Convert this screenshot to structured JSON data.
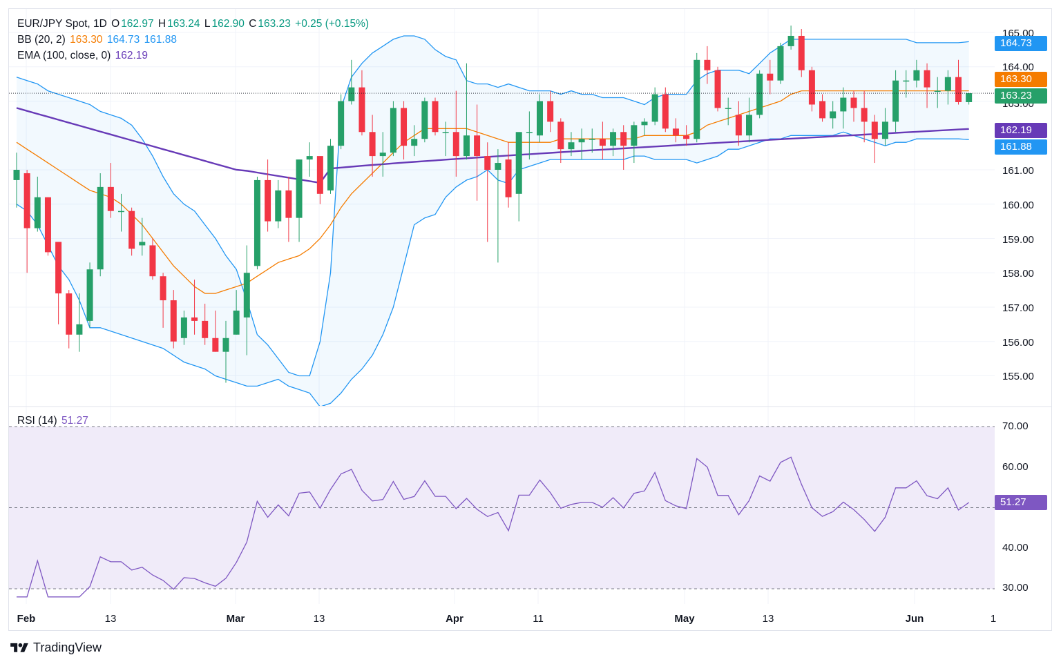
{
  "legend": {
    "symbol": "EUR/JPY Spot, 1D",
    "o_label": "O",
    "o_value": "162.97",
    "h_label": "H",
    "h_value": "163.24",
    "l_label": "L",
    "l_value": "162.90",
    "c_label": "C",
    "c_value": "163.23",
    "change": "+0.25 (+0.15%)",
    "bb_label": "BB (20, 2)",
    "bb_mid": "163.30",
    "bb_upper": "164.73",
    "bb_lower": "161.88",
    "ema_label": "EMA (100, close, 0)",
    "ema_value": "162.19",
    "rsi_label": "RSI (14)",
    "rsi_value": "51.27"
  },
  "price_tags": {
    "upper": "164.73",
    "mid": "163.30",
    "close": "163.23",
    "ema": "162.19",
    "lower": "161.88",
    "rsi": "51.27"
  },
  "colors": {
    "up": "#26a069",
    "down": "#f23645",
    "bb_basis": "#f57c00",
    "bb_band": "#2196f3",
    "ema": "#673ab7",
    "rsi": "#7e57c2",
    "rsi_fill": "#f0ebf9"
  },
  "x_labels": [
    {
      "text": "Feb",
      "bold": true
    },
    {
      "text": "13",
      "bold": false
    },
    {
      "text": "Mar",
      "bold": true
    },
    {
      "text": "13",
      "bold": false
    },
    {
      "text": "Apr",
      "bold": true
    },
    {
      "text": "11",
      "bold": false
    },
    {
      "text": "May",
      "bold": true
    },
    {
      "text": "13",
      "bold": false
    },
    {
      "text": "Jun",
      "bold": true
    },
    {
      "text": "1",
      "bold": false
    }
  ],
  "brand": "TradingView",
  "chart_data": {
    "type": "candlestick",
    "title": "EUR/JPY Spot, 1D",
    "price_axis": {
      "ticks": [
        "165.00",
        "164.00",
        "163.00",
        "161.00",
        "160.00",
        "159.00",
        "158.00",
        "157.00",
        "156.00",
        "155.00"
      ],
      "ylim": [
        154.2,
        165.8
      ]
    },
    "rsi_axis": {
      "ticks": [
        "70.00",
        "60.00",
        "40.00",
        "30.00"
      ],
      "ylim": [
        27,
        75
      ],
      "bands": [
        30,
        70
      ],
      "mid": 50
    },
    "candles": [
      {
        "o": 160.7,
        "h": 161.5,
        "l": 159.9,
        "c": 161.0
      },
      {
        "o": 160.9,
        "h": 161.0,
        "l": 158.0,
        "c": 159.3
      },
      {
        "o": 159.3,
        "h": 160.8,
        "l": 159.2,
        "c": 160.2
      },
      {
        "o": 160.2,
        "h": 160.2,
        "l": 158.5,
        "c": 158.6
      },
      {
        "o": 158.9,
        "h": 158.9,
        "l": 156.5,
        "c": 157.4
      },
      {
        "o": 157.4,
        "h": 157.5,
        "l": 155.8,
        "c": 156.2
      },
      {
        "o": 156.2,
        "h": 157.4,
        "l": 155.7,
        "c": 156.5
      },
      {
        "o": 156.6,
        "h": 158.3,
        "l": 156.4,
        "c": 158.1
      },
      {
        "o": 158.1,
        "h": 160.9,
        "l": 157.9,
        "c": 160.5
      },
      {
        "o": 160.5,
        "h": 161.2,
        "l": 159.6,
        "c": 159.8
      },
      {
        "o": 159.8,
        "h": 160.3,
        "l": 159.2,
        "c": 159.8
      },
      {
        "o": 159.8,
        "h": 159.9,
        "l": 158.5,
        "c": 158.7
      },
      {
        "o": 158.8,
        "h": 159.6,
        "l": 158.5,
        "c": 158.9
      },
      {
        "o": 158.8,
        "h": 159.0,
        "l": 157.8,
        "c": 157.9
      },
      {
        "o": 157.9,
        "h": 158.0,
        "l": 156.4,
        "c": 157.2
      },
      {
        "o": 157.2,
        "h": 157.5,
        "l": 155.8,
        "c": 156.0
      },
      {
        "o": 156.1,
        "h": 156.9,
        "l": 155.9,
        "c": 156.7
      },
      {
        "o": 156.7,
        "h": 157.8,
        "l": 156.2,
        "c": 156.6
      },
      {
        "o": 156.6,
        "h": 157.1,
        "l": 155.9,
        "c": 156.1
      },
      {
        "o": 156.1,
        "h": 156.9,
        "l": 155.7,
        "c": 155.7
      },
      {
        "o": 155.7,
        "h": 156.6,
        "l": 154.8,
        "c": 156.1
      },
      {
        "o": 156.2,
        "h": 157.5,
        "l": 156.2,
        "c": 156.9
      },
      {
        "o": 156.7,
        "h": 158.8,
        "l": 155.6,
        "c": 158.0
      },
      {
        "o": 158.2,
        "h": 160.8,
        "l": 158.1,
        "c": 160.7
      },
      {
        "o": 160.7,
        "h": 161.3,
        "l": 159.2,
        "c": 159.5
      },
      {
        "o": 159.5,
        "h": 160.7,
        "l": 159.3,
        "c": 160.4
      },
      {
        "o": 160.4,
        "h": 160.8,
        "l": 158.9,
        "c": 159.6
      },
      {
        "o": 159.6,
        "h": 161.3,
        "l": 158.9,
        "c": 161.3
      },
      {
        "o": 161.3,
        "h": 161.8,
        "l": 160.8,
        "c": 161.4
      },
      {
        "o": 161.4,
        "h": 161.3,
        "l": 160.0,
        "c": 160.3
      },
      {
        "o": 160.4,
        "h": 161.9,
        "l": 160.3,
        "c": 161.7
      },
      {
        "o": 161.7,
        "h": 163.2,
        "l": 161.6,
        "c": 163.0
      },
      {
        "o": 163.0,
        "h": 164.2,
        "l": 162.9,
        "c": 163.4
      },
      {
        "o": 163.4,
        "h": 163.9,
        "l": 162.0,
        "c": 162.1
      },
      {
        "o": 162.1,
        "h": 162.6,
        "l": 160.8,
        "c": 161.4
      },
      {
        "o": 161.4,
        "h": 162.1,
        "l": 160.8,
        "c": 161.5
      },
      {
        "o": 161.5,
        "h": 163.0,
        "l": 161.4,
        "c": 162.8
      },
      {
        "o": 162.8,
        "h": 163.0,
        "l": 161.3,
        "c": 161.7
      },
      {
        "o": 161.7,
        "h": 162.3,
        "l": 161.4,
        "c": 161.9
      },
      {
        "o": 161.9,
        "h": 163.1,
        "l": 161.8,
        "c": 163.0
      },
      {
        "o": 163.0,
        "h": 163.1,
        "l": 162.0,
        "c": 162.1
      },
      {
        "o": 162.1,
        "h": 162.4,
        "l": 161.4,
        "c": 162.1
      },
      {
        "o": 162.1,
        "h": 163.3,
        "l": 160.8,
        "c": 161.4
      },
      {
        "o": 161.4,
        "h": 164.1,
        "l": 161.3,
        "c": 162.0
      },
      {
        "o": 162.0,
        "h": 162.9,
        "l": 160.1,
        "c": 161.4
      },
      {
        "o": 161.4,
        "h": 161.8,
        "l": 158.9,
        "c": 161.0
      },
      {
        "o": 161.0,
        "h": 161.6,
        "l": 158.3,
        "c": 161.2
      },
      {
        "o": 161.3,
        "h": 161.8,
        "l": 159.9,
        "c": 160.2
      },
      {
        "o": 160.3,
        "h": 162.0,
        "l": 159.5,
        "c": 162.1
      },
      {
        "o": 162.1,
        "h": 162.7,
        "l": 161.3,
        "c": 162.1
      },
      {
        "o": 162.0,
        "h": 163.2,
        "l": 161.8,
        "c": 163.0
      },
      {
        "o": 163.0,
        "h": 163.3,
        "l": 162.1,
        "c": 162.4
      },
      {
        "o": 162.4,
        "h": 162.5,
        "l": 161.2,
        "c": 161.6
      },
      {
        "o": 161.6,
        "h": 162.1,
        "l": 161.4,
        "c": 161.8
      },
      {
        "o": 161.8,
        "h": 162.2,
        "l": 161.3,
        "c": 161.9
      },
      {
        "o": 161.9,
        "h": 162.2,
        "l": 161.5,
        "c": 161.9
      },
      {
        "o": 161.9,
        "h": 162.4,
        "l": 161.3,
        "c": 161.7
      },
      {
        "o": 161.7,
        "h": 162.2,
        "l": 161.4,
        "c": 162.1
      },
      {
        "o": 162.1,
        "h": 162.3,
        "l": 161.0,
        "c": 161.7
      },
      {
        "o": 161.7,
        "h": 162.4,
        "l": 161.2,
        "c": 162.3
      },
      {
        "o": 162.3,
        "h": 162.5,
        "l": 162.0,
        "c": 162.4
      },
      {
        "o": 162.4,
        "h": 163.4,
        "l": 162.3,
        "c": 163.2
      },
      {
        "o": 163.2,
        "h": 163.4,
        "l": 162.1,
        "c": 162.2
      },
      {
        "o": 162.2,
        "h": 162.5,
        "l": 161.8,
        "c": 162.0
      },
      {
        "o": 162.0,
        "h": 162.3,
        "l": 161.7,
        "c": 161.9
      },
      {
        "o": 161.9,
        "h": 164.4,
        "l": 161.8,
        "c": 164.2
      },
      {
        "o": 164.2,
        "h": 164.6,
        "l": 163.5,
        "c": 163.9
      },
      {
        "o": 163.9,
        "h": 164.0,
        "l": 162.7,
        "c": 162.8
      },
      {
        "o": 162.8,
        "h": 163.1,
        "l": 162.3,
        "c": 162.8
      },
      {
        "o": 162.6,
        "h": 163.0,
        "l": 161.7,
        "c": 162.0
      },
      {
        "o": 162.0,
        "h": 163.1,
        "l": 161.8,
        "c": 162.6
      },
      {
        "o": 162.6,
        "h": 163.9,
        "l": 162.5,
        "c": 163.8
      },
      {
        "o": 163.8,
        "h": 164.2,
        "l": 163.2,
        "c": 163.6
      },
      {
        "o": 163.6,
        "h": 164.7,
        "l": 163.5,
        "c": 164.6
      },
      {
        "o": 164.6,
        "h": 165.2,
        "l": 164.5,
        "c": 164.9
      },
      {
        "o": 164.9,
        "h": 165.1,
        "l": 163.7,
        "c": 163.9
      },
      {
        "o": 163.9,
        "h": 164.0,
        "l": 162.7,
        "c": 162.9
      },
      {
        "o": 163.0,
        "h": 163.2,
        "l": 162.4,
        "c": 162.5
      },
      {
        "o": 162.5,
        "h": 163.0,
        "l": 162.2,
        "c": 162.7
      },
      {
        "o": 162.7,
        "h": 163.4,
        "l": 162.2,
        "c": 163.1
      },
      {
        "o": 163.1,
        "h": 163.3,
        "l": 162.4,
        "c": 162.8
      },
      {
        "o": 162.8,
        "h": 163.3,
        "l": 161.8,
        "c": 162.4
      },
      {
        "o": 162.4,
        "h": 162.6,
        "l": 161.2,
        "c": 161.9
      },
      {
        "o": 161.9,
        "h": 162.8,
        "l": 161.7,
        "c": 162.4
      },
      {
        "o": 162.4,
        "h": 163.9,
        "l": 162.1,
        "c": 163.6
      },
      {
        "o": 163.6,
        "h": 163.9,
        "l": 163.1,
        "c": 163.6
      },
      {
        "o": 163.6,
        "h": 164.2,
        "l": 163.4,
        "c": 163.9
      },
      {
        "o": 163.9,
        "h": 164.1,
        "l": 162.8,
        "c": 163.4
      },
      {
        "o": 163.3,
        "h": 163.7,
        "l": 162.8,
        "c": 163.3
      },
      {
        "o": 163.3,
        "h": 163.9,
        "l": 162.9,
        "c": 163.7
      },
      {
        "o": 163.7,
        "h": 164.2,
        "l": 162.9,
        "c": 162.97
      },
      {
        "o": 162.97,
        "h": 163.24,
        "l": 162.9,
        "c": 163.23
      }
    ],
    "bb_upper": [
      163.7,
      163.6,
      163.5,
      163.3,
      163.2,
      163.1,
      163.0,
      162.9,
      162.7,
      162.6,
      162.5,
      162.3,
      161.9,
      161.4,
      160.8,
      160.3,
      160.0,
      159.8,
      159.4,
      159.0,
      158.5,
      158.1,
      157.2,
      156.2,
      155.9,
      155.5,
      155.1,
      155.0,
      155.0,
      156.0,
      158.0,
      162.8,
      163.7,
      164.1,
      164.4,
      164.6,
      164.8,
      164.9,
      164.9,
      164.8,
      164.5,
      164.3,
      164.2,
      163.6,
      163.5,
      163.5,
      163.4,
      163.5,
      163.4,
      163.3,
      163.3,
      163.3,
      163.2,
      163.3,
      163.2,
      163.2,
      163.1,
      163.1,
      163.1,
      163.0,
      162.9,
      163.1,
      163.2,
      163.2,
      163.2,
      163.6,
      163.8,
      163.9,
      163.9,
      163.9,
      163.8,
      164.1,
      164.4,
      164.6,
      164.8,
      164.8,
      164.8,
      164.8,
      164.8,
      164.8,
      164.8,
      164.8,
      164.8,
      164.8,
      164.8,
      164.8,
      164.7,
      164.7,
      164.7,
      164.7,
      164.7,
      164.73
    ],
    "bb_basis": [
      161.8,
      161.6,
      161.4,
      161.2,
      161.0,
      160.8,
      160.6,
      160.4,
      160.3,
      160.2,
      160.0,
      159.7,
      159.4,
      159.0,
      158.6,
      158.2,
      157.9,
      157.6,
      157.4,
      157.4,
      157.5,
      157.6,
      157.7,
      157.9,
      158.1,
      158.3,
      158.4,
      158.5,
      158.7,
      159.0,
      159.4,
      159.9,
      160.3,
      160.6,
      160.9,
      161.2,
      161.5,
      161.8,
      162.0,
      162.2,
      162.2,
      162.2,
      162.2,
      162.2,
      162.1,
      162.0,
      161.9,
      161.8,
      161.8,
      161.8,
      161.8,
      161.8,
      161.9,
      161.9,
      161.9,
      161.9,
      161.9,
      161.9,
      161.9,
      161.9,
      162.0,
      162.0,
      162.0,
      162.0,
      162.0,
      162.1,
      162.3,
      162.4,
      162.5,
      162.6,
      162.7,
      162.8,
      162.9,
      163.0,
      163.2,
      163.3,
      163.3,
      163.3,
      163.3,
      163.3,
      163.3,
      163.3,
      163.3,
      163.3,
      163.3,
      163.3,
      163.3,
      163.3,
      163.3,
      163.3,
      163.3,
      163.3
    ],
    "bb_lower": [
      160.0,
      159.8,
      159.4,
      158.8,
      158.2,
      157.8,
      157.2,
      156.4,
      156.4,
      156.3,
      156.2,
      156.1,
      156.0,
      155.9,
      155.8,
      155.6,
      155.4,
      155.3,
      155.2,
      155.0,
      154.9,
      154.8,
      154.7,
      154.7,
      154.8,
      154.9,
      154.7,
      154.6,
      154.5,
      154.1,
      154.2,
      154.5,
      154.9,
      155.2,
      155.6,
      156.2,
      157.0,
      158.2,
      159.4,
      159.6,
      159.7,
      160.2,
      160.5,
      160.7,
      160.8,
      161.0,
      160.7,
      160.6,
      161.0,
      161.1,
      161.2,
      161.3,
      161.3,
      161.3,
      161.3,
      161.3,
      161.3,
      161.3,
      161.3,
      161.4,
      161.4,
      161.3,
      161.3,
      161.3,
      161.3,
      161.2,
      161.3,
      161.4,
      161.6,
      161.6,
      161.7,
      161.8,
      161.9,
      161.9,
      162.0,
      162.0,
      162.0,
      162.0,
      162.0,
      162.1,
      162.0,
      161.9,
      161.8,
      161.7,
      161.8,
      161.8,
      161.9,
      161.9,
      161.9,
      161.9,
      161.9,
      161.88
    ]
  }
}
